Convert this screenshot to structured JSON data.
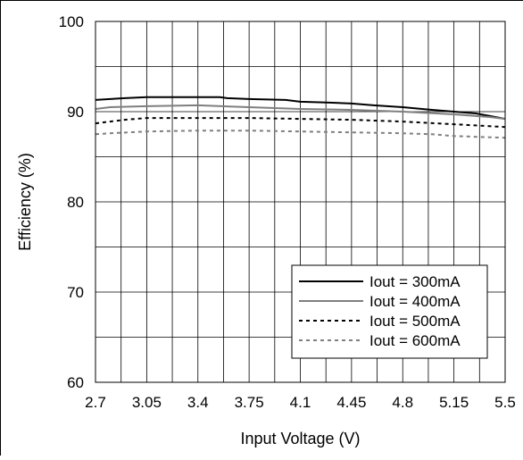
{
  "chart_data": {
    "type": "line",
    "title": "",
    "xlabel": "Input Voltage (V)",
    "ylabel": "Efficiency (%)",
    "xlim": [
      2.7,
      5.5
    ],
    "ylim": [
      60,
      100
    ],
    "x_ticks": [
      2.7,
      3.05,
      3.4,
      3.75,
      4.1,
      4.45,
      4.8,
      5.15,
      5.5
    ],
    "x_tick_labels": [
      "2.7",
      "3.05",
      "3.4",
      "3.75",
      "4.1",
      "4.45",
      "4.8",
      "5.15",
      "5.5"
    ],
    "y_ticks": [
      60,
      70,
      80,
      90,
      100
    ],
    "y_tick_labels": [
      "60",
      "70",
      "80",
      "90",
      "100"
    ],
    "x_minor_gridlines": [
      2.875,
      3.225,
      3.575,
      3.925,
      4.275,
      4.625,
      4.975,
      5.325
    ],
    "y_minor_gridlines": [
      65,
      75,
      85,
      95
    ],
    "grid": true,
    "legend_position": "bottom-right",
    "series": [
      {
        "name": "Iout = 300mA",
        "color": "#000000",
        "dash": "solid",
        "x": [
          2.7,
          2.8,
          2.9,
          3.05,
          3.4,
          3.55,
          3.6,
          3.75,
          4.0,
          4.1,
          4.3,
          4.45,
          4.6,
          4.8,
          5.0,
          5.15,
          5.3,
          5.4,
          5.5
        ],
        "y": [
          91.3,
          91.4,
          91.5,
          91.6,
          91.6,
          91.6,
          91.5,
          91.4,
          91.3,
          91.1,
          91.0,
          90.9,
          90.7,
          90.5,
          90.2,
          90.0,
          89.8,
          89.5,
          89.2
        ]
      },
      {
        "name": "Iout = 400mA",
        "color": "#7f7f7f",
        "dash": "solid",
        "x": [
          2.7,
          2.8,
          3.05,
          3.4,
          3.75,
          4.1,
          4.45,
          4.8,
          5.15,
          5.4,
          5.5
        ],
        "y": [
          90.3,
          90.5,
          90.6,
          90.7,
          90.5,
          90.3,
          90.2,
          90.0,
          89.7,
          89.4,
          89.2
        ]
      },
      {
        "name": "Iout = 500mA",
        "color": "#000000",
        "dash": "dotted",
        "x": [
          2.7,
          2.8,
          2.9,
          3.05,
          3.4,
          3.75,
          4.1,
          4.45,
          4.8,
          5.15,
          5.5
        ],
        "y": [
          88.7,
          88.9,
          89.1,
          89.3,
          89.3,
          89.3,
          89.2,
          89.1,
          88.9,
          88.6,
          88.3
        ]
      },
      {
        "name": "Iout = 600mA",
        "color": "#7f7f7f",
        "dash": "dotted",
        "x": [
          2.7,
          2.8,
          3.05,
          3.4,
          3.75,
          4.1,
          4.45,
          4.8,
          5.0,
          5.15,
          5.5
        ],
        "y": [
          87.5,
          87.6,
          87.8,
          87.9,
          87.9,
          87.8,
          87.7,
          87.6,
          87.5,
          87.3,
          87.1
        ]
      }
    ]
  }
}
